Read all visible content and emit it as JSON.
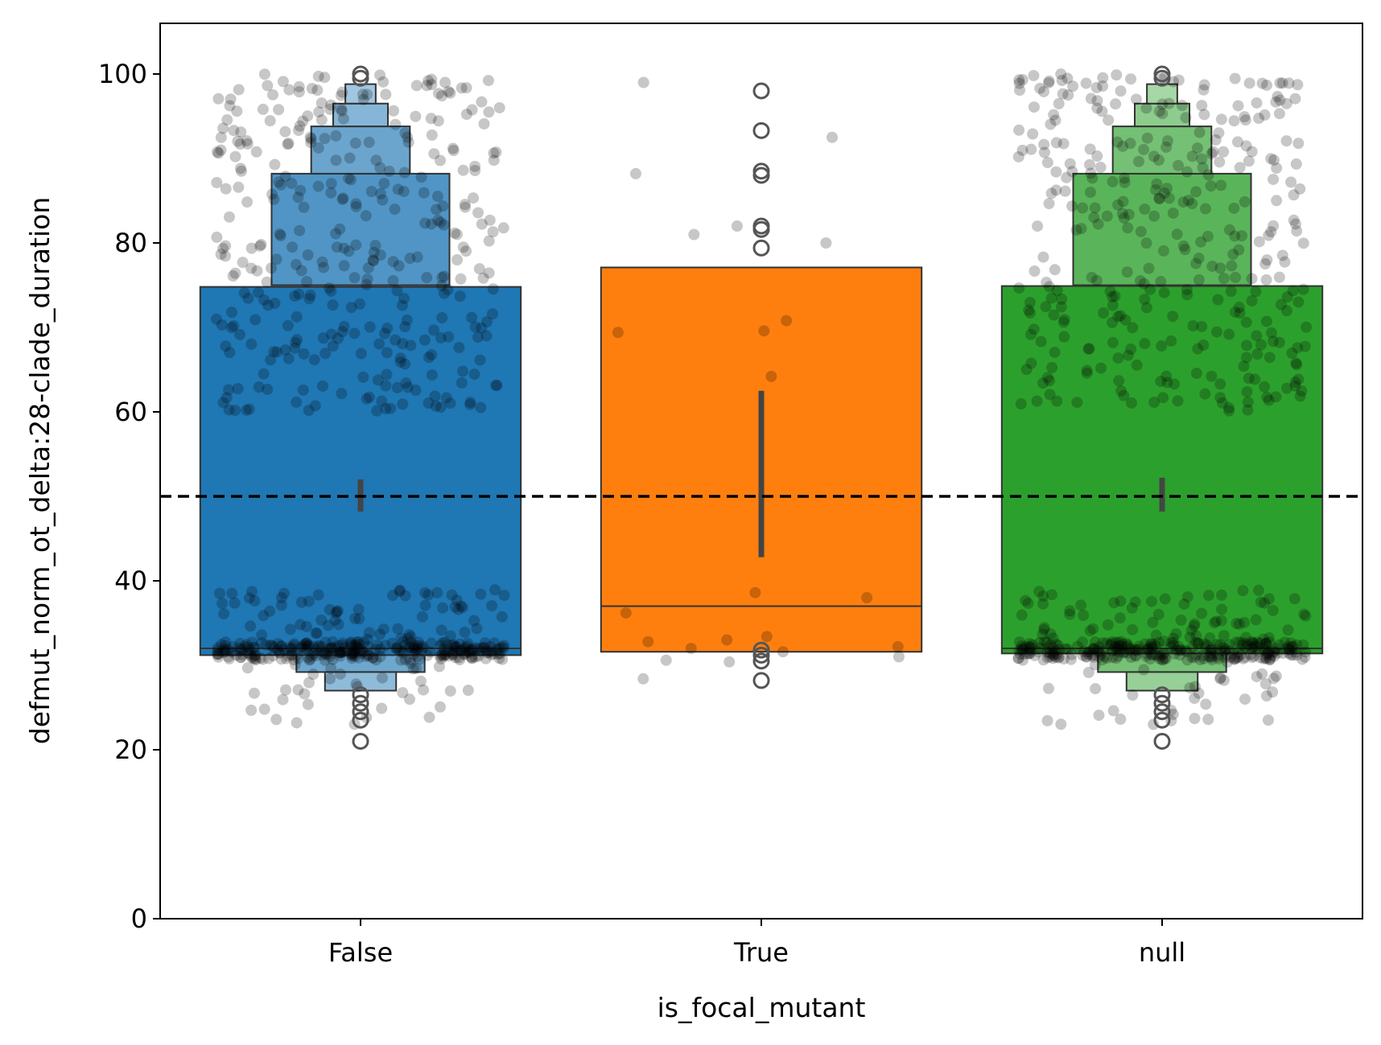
{
  "chart_data": {
    "type": "boxen",
    "xlabel": "is_focal_mutant",
    "ylabel": "defmut_norm_ot_delta:28-clade_duration",
    "categories": [
      "False",
      "True",
      "null"
    ],
    "ylim": [
      0,
      106
    ],
    "yticks": [
      0,
      20,
      40,
      60,
      80,
      100
    ],
    "grid": false,
    "legend": "none",
    "reference_line": {
      "y": 50,
      "style": "dashed",
      "color": "#000000"
    },
    "series": [
      {
        "category": "False",
        "color": "#1f77b4",
        "median": 32,
        "ci": [
          48.2,
          52.0
        ],
        "boxes": [
          [
            31.2,
            74.8
          ],
          [
            75.0,
            88.2
          ],
          [
            88.2,
            93.8
          ],
          [
            93.8,
            96.5
          ],
          [
            96.5,
            98.8
          ]
        ],
        "lower_boxes": [
          [
            29.2,
            31.2
          ],
          [
            27.0,
            29.2
          ]
        ],
        "outliers": [
          21,
          23.5,
          24.5,
          25.5,
          26.5,
          99.5,
          100
        ]
      },
      {
        "category": "True",
        "color": "#ff7f0e",
        "median": 37,
        "ci": [
          42.8,
          62.5
        ],
        "boxes": [
          [
            31.6,
            77.1
          ]
        ],
        "lower_boxes": [],
        "outliers": [
          28.2,
          30.5,
          31.2,
          31.8,
          79.4,
          81.6,
          82.0,
          88.0,
          88.5,
          93.3,
          98.0
        ]
      },
      {
        "category": "null",
        "color": "#2ca02c",
        "median": 32,
        "ci": [
          48.2,
          52.2
        ],
        "boxes": [
          [
            31.4,
            74.9
          ],
          [
            75.0,
            88.2
          ],
          [
            88.2,
            93.8
          ],
          [
            93.8,
            96.5
          ],
          [
            96.5,
            98.8
          ]
        ],
        "lower_boxes": [
          [
            29.2,
            31.4
          ],
          [
            27.0,
            29.2
          ]
        ],
        "outliers": [
          21,
          23.5,
          24.5,
          25.5,
          26.5,
          99.5,
          100
        ]
      }
    ],
    "strip_points": [
      {
        "category": "True",
        "values": [
          99,
          92.5,
          88.2,
          80,
          81,
          82,
          70.8,
          69.4,
          69.6,
          64.2,
          38.6,
          38,
          36.2,
          33.4,
          33,
          32.8,
          32.2,
          32,
          31.6,
          31,
          30.6,
          30.4,
          28.4
        ]
      }
    ]
  }
}
